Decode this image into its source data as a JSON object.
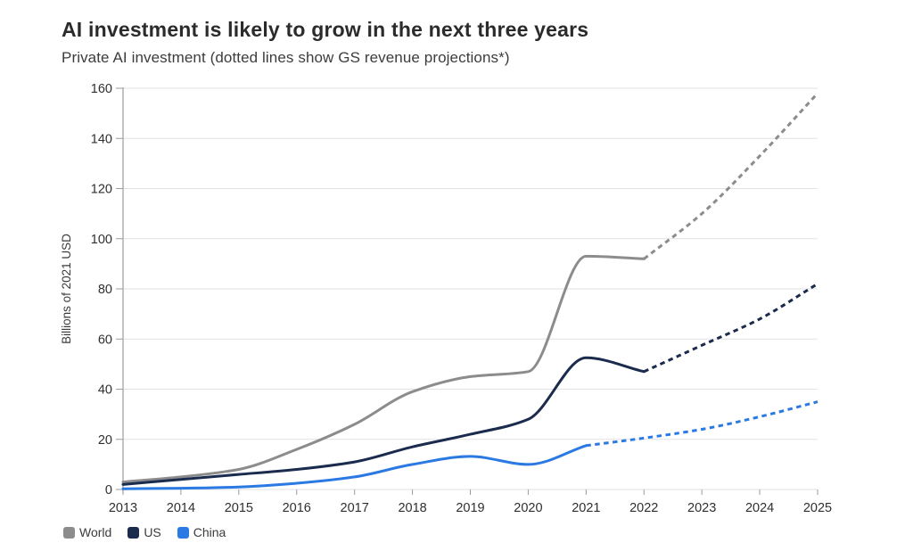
{
  "header": {
    "title": "AI investment is likely to grow in the next three years",
    "subtitle": "Private AI investment (dotted lines show GS revenue projections*)"
  },
  "chart_data": {
    "type": "line",
    "title": "AI investment is likely to grow in the next three years",
    "subtitle": "Private AI investment (dotted lines show GS revenue projections*)",
    "xlabel": "",
    "ylabel": "Billions of 2021 USD",
    "x_ticks": [
      "2013",
      "2014",
      "2015",
      "2016",
      "2017",
      "2018",
      "2019",
      "2020",
      "2021",
      "2022",
      "2023",
      "2024",
      "2025"
    ],
    "y_ticks": [
      0,
      20,
      40,
      60,
      80,
      100,
      120,
      140,
      160
    ],
    "xlim": [
      2013,
      2025
    ],
    "ylim": [
      0,
      160
    ],
    "grid": "horizontal",
    "legend_position": "bottom-left",
    "series": [
      {
        "name": "World",
        "color": "#8c8c8c",
        "solid": {
          "x": [
            2013,
            2014,
            2015,
            2016,
            2017,
            2018,
            2019,
            2020,
            2021,
            2022
          ],
          "y": [
            3,
            5,
            8,
            16,
            26,
            39,
            45,
            47,
            93,
            92
          ]
        },
        "projection": {
          "x": [
            2022,
            2023,
            2024,
            2025
          ],
          "y": [
            92,
            110,
            133,
            158
          ]
        }
      },
      {
        "name": "US",
        "color": "#1b2b4d",
        "solid": {
          "x": [
            2013,
            2014,
            2015,
            2016,
            2017,
            2018,
            2019,
            2020,
            2021,
            2022
          ],
          "y": [
            2,
            4,
            6,
            8,
            11,
            17,
            22,
            28,
            52.5,
            47
          ]
        },
        "projection": {
          "x": [
            2022,
            2023,
            2024,
            2025
          ],
          "y": [
            47,
            57.5,
            68,
            82
          ]
        }
      },
      {
        "name": "China",
        "color": "#2b79e3",
        "solid": {
          "x": [
            2013,
            2014,
            2015,
            2016,
            2017,
            2018,
            2019,
            2020,
            2021
          ],
          "y": [
            0.3,
            0.5,
            1,
            2.5,
            5,
            10,
            13.2,
            10,
            17.5
          ]
        },
        "projection": {
          "x": [
            2021,
            2022,
            2023,
            2024,
            2025
          ],
          "y": [
            17.5,
            20.5,
            24,
            29,
            35
          ]
        }
      }
    ],
    "legend": [
      {
        "label": "World",
        "color": "#8c8c8c"
      },
      {
        "label": "US",
        "color": "#1b2b4d"
      },
      {
        "label": "China",
        "color": "#2b79e3"
      }
    ]
  }
}
